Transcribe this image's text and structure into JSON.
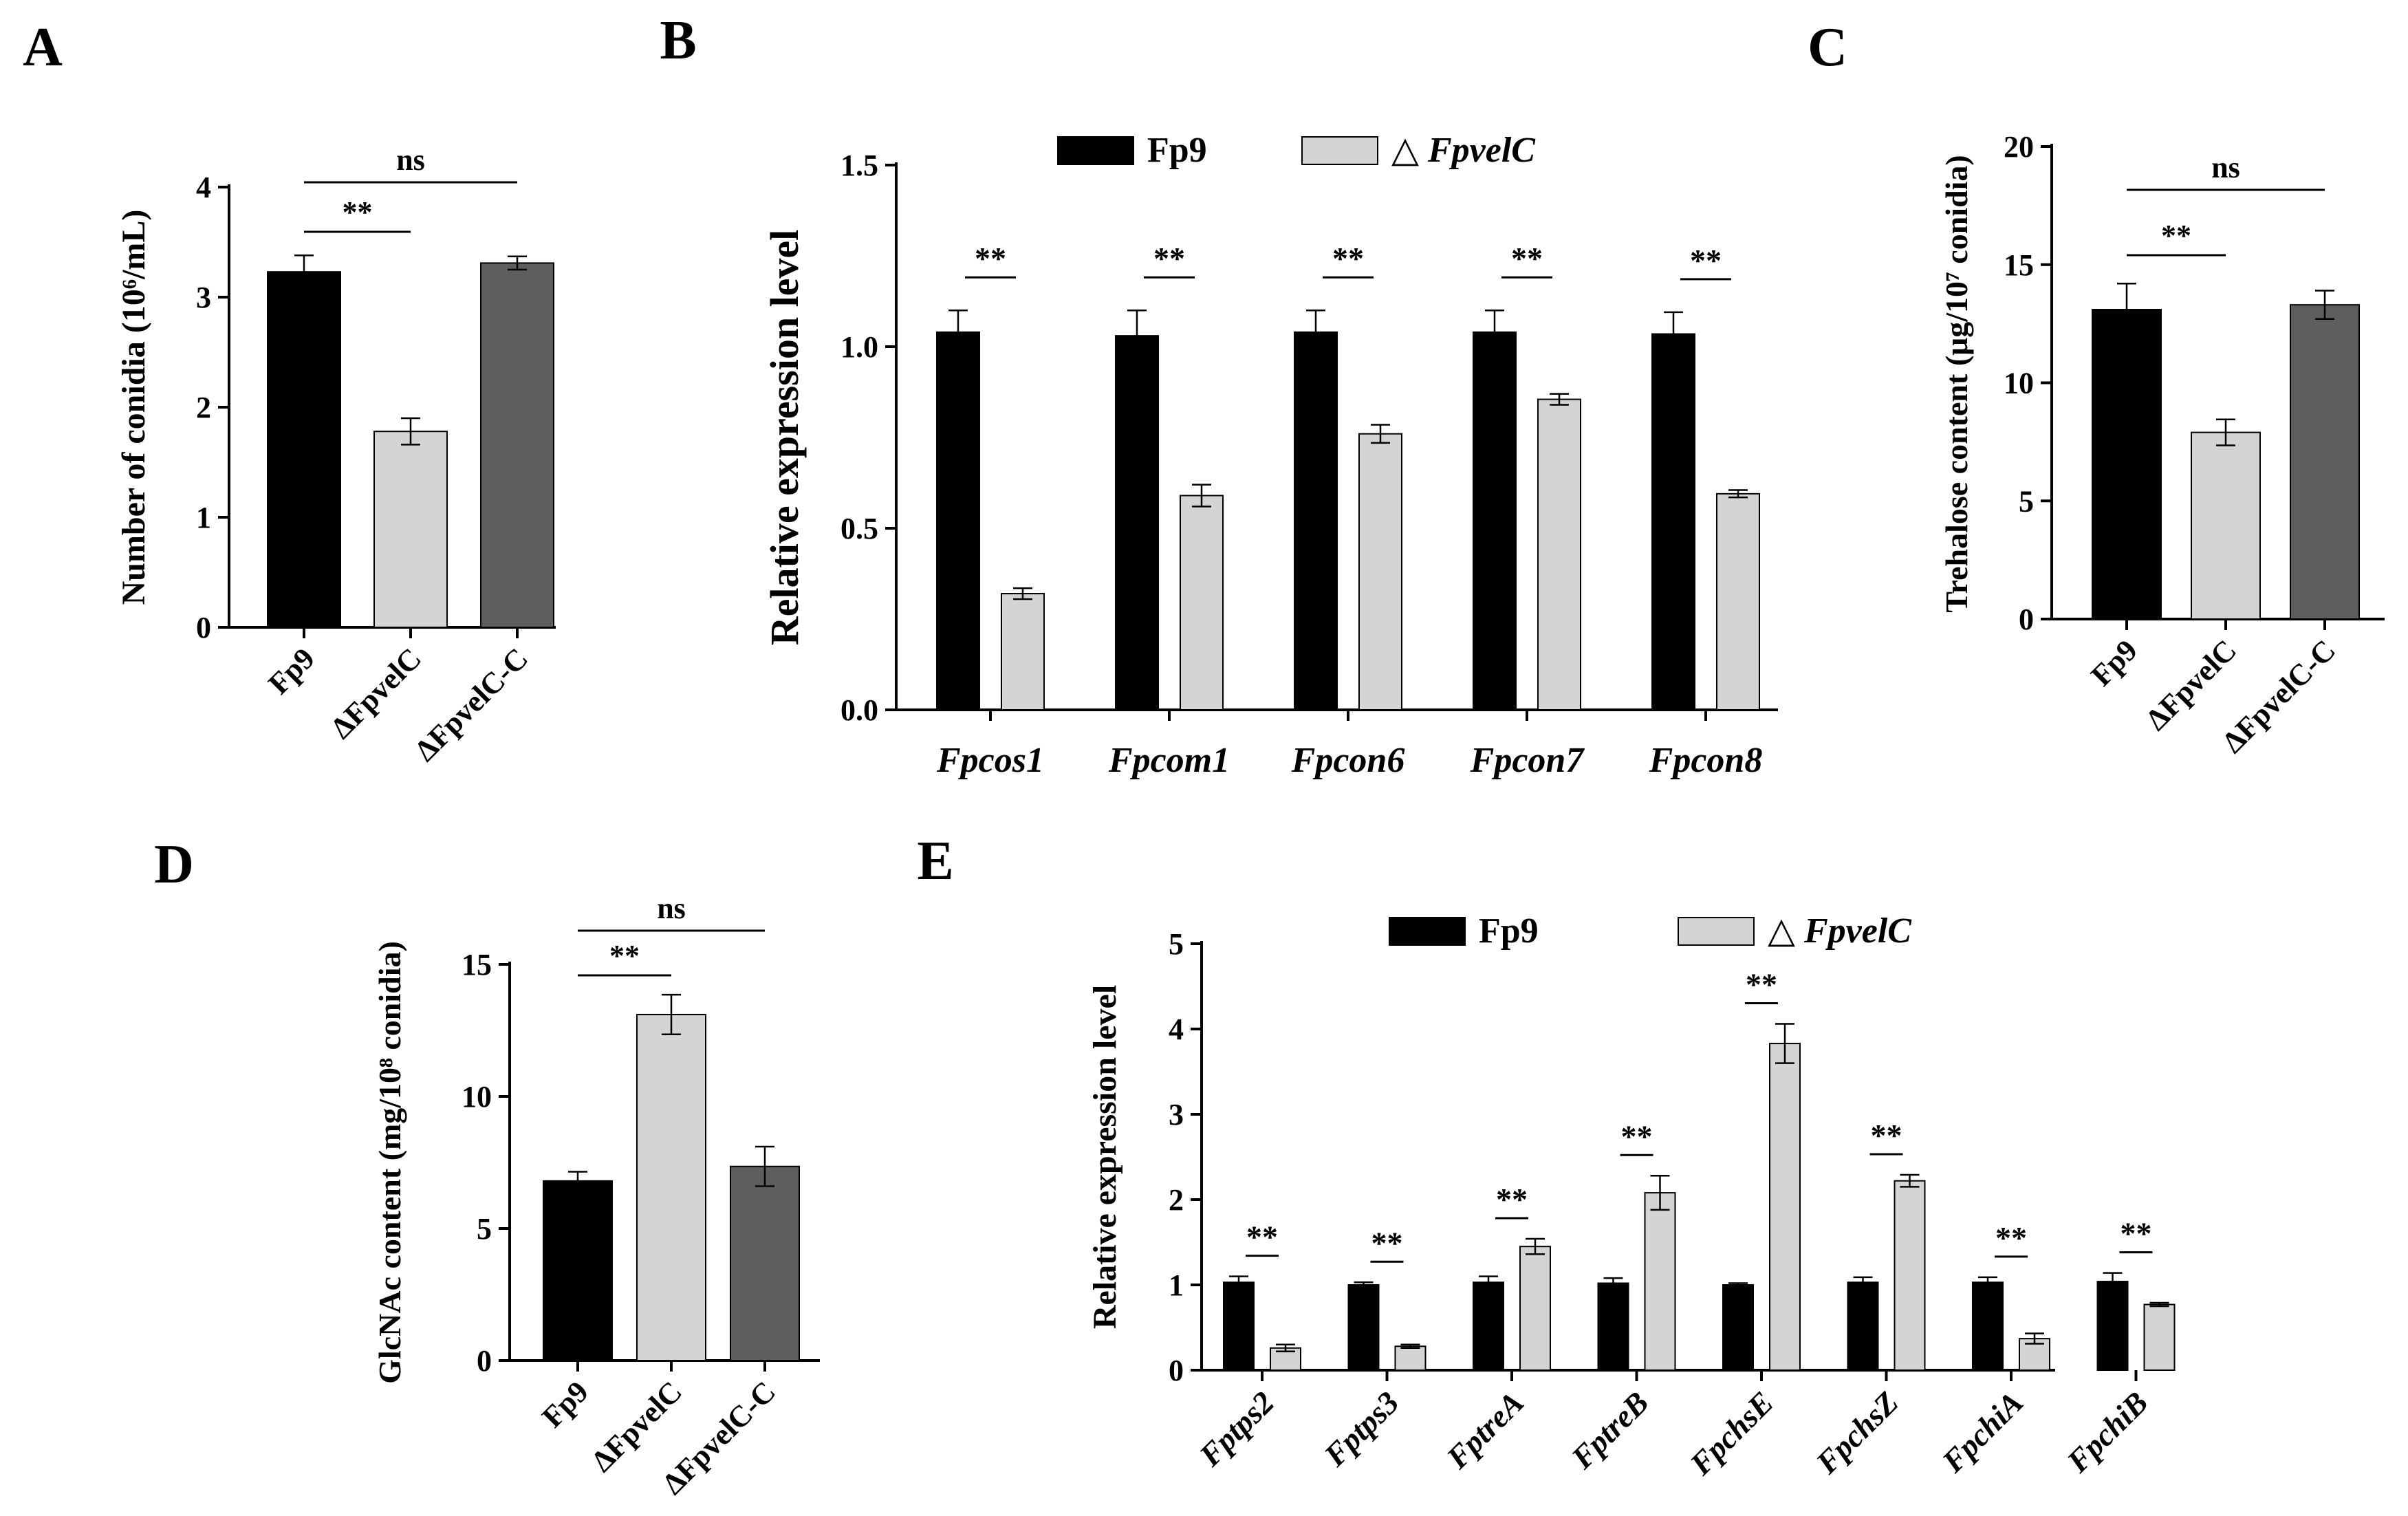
{
  "chart_data": [
    {
      "panel": "A",
      "type": "bar",
      "categories": [
        "Fp9",
        "ΔFpvelC",
        "ΔFpvelC-C"
      ],
      "values": [
        3.23,
        1.78,
        3.31
      ],
      "errors": [
        0.15,
        0.12,
        0.06
      ],
      "colors": [
        "#000000",
        "#d4d4d4",
        "#5e5e5e"
      ],
      "ylabel": "Number of conidia (10⁶/mL)",
      "ylim": [
        0,
        4
      ],
      "yticks": [
        "0",
        "1",
        "2",
        "3",
        "4"
      ],
      "grid": false,
      "significance": [
        {
          "from": "Fp9",
          "to": "ΔFpvelC",
          "label": "**"
        },
        {
          "from": "Fp9",
          "to": "ΔFpvelC-C",
          "label": "ns"
        }
      ]
    },
    {
      "panel": "B",
      "type": "bar",
      "categories": [
        "Fpcos1",
        "Fpcom1",
        "Fpcon6",
        "Fpcon7",
        "Fpcon8"
      ],
      "series": [
        {
          "name": "Fp9",
          "color": "#000000",
          "values": [
            1.04,
            1.03,
            1.04,
            1.04,
            1.035
          ],
          "errors": [
            0.06,
            0.07,
            0.06,
            0.06,
            0.06
          ]
        },
        {
          "name": "△ FpvelC",
          "color": "#d4d4d4",
          "values": [
            0.32,
            0.59,
            0.76,
            0.855,
            0.595
          ],
          "errors": [
            0.015,
            0.03,
            0.025,
            0.015,
            0.01
          ]
        }
      ],
      "ylabel": "Relative expression level",
      "ylim": [
        0,
        1.5
      ],
      "yticks": [
        "0.0",
        "0.5",
        "1.0",
        "1.5"
      ],
      "grid": false,
      "significance_label": "**",
      "legend": "top"
    },
    {
      "panel": "C",
      "type": "bar",
      "categories": [
        "Fp9",
        "ΔFpvelC",
        "ΔFpvelC-C"
      ],
      "values": [
        13.1,
        7.9,
        13.3
      ],
      "errors": [
        1.1,
        0.55,
        0.6
      ],
      "colors": [
        "#000000",
        "#d4d4d4",
        "#5e5e5e"
      ],
      "ylabel": "Trehalose content (μg/10⁷ conidia)",
      "ylim": [
        0,
        20
      ],
      "yticks": [
        "0",
        "5",
        "10",
        "15",
        "20"
      ],
      "grid": false,
      "significance": [
        {
          "from": "Fp9",
          "to": "ΔFpvelC",
          "label": "**"
        },
        {
          "from": "Fp9",
          "to": "ΔFpvelC-C",
          "label": "ns"
        }
      ]
    },
    {
      "panel": "D",
      "type": "bar",
      "categories": [
        "Fp9",
        "ΔFpvelC",
        "ΔFpvelC-C"
      ],
      "values": [
        6.8,
        13.1,
        7.35
      ],
      "errors": [
        0.35,
        0.75,
        0.75
      ],
      "colors": [
        "#000000",
        "#d4d4d4",
        "#5e5e5e"
      ],
      "ylabel": "GlcNAc content (mg/10⁸ conidia)",
      "ylim": [
        0,
        15
      ],
      "yticks": [
        "0",
        "5",
        "10",
        "15"
      ],
      "grid": false,
      "significance": [
        {
          "from": "Fp9",
          "to": "ΔFpvelC",
          "label": "**"
        },
        {
          "from": "Fp9",
          "to": "ΔFpvelC-C",
          "label": "ns"
        }
      ]
    },
    {
      "panel": "E",
      "type": "bar",
      "categories": [
        "Fptps2",
        "Fptps3",
        "FptreA",
        "FptreB",
        "FpchsE",
        "FpchsZ",
        "FpchiA",
        "FpchiB"
      ],
      "series": [
        {
          "name": "Fp9",
          "color": "#000000",
          "values": [
            1.03,
            1.0,
            1.03,
            1.02,
            1.0,
            1.03,
            1.03,
            1.04
          ],
          "errors": [
            0.07,
            0.03,
            0.07,
            0.06,
            0.02,
            0.06,
            0.06,
            0.1
          ]
        },
        {
          "name": "△ FpvelC",
          "color": "#d4d4d4",
          "values": [
            0.26,
            0.28,
            1.45,
            2.08,
            3.83,
            2.22,
            0.37,
            0.77
          ],
          "errors": [
            0.04,
            0.02,
            0.09,
            0.2,
            0.23,
            0.07,
            0.06,
            0.02
          ]
        }
      ],
      "ylabel": "Relative expression level",
      "ylim": [
        0,
        5
      ],
      "yticks": [
        "0",
        "1",
        "2",
        "3",
        "4",
        "5"
      ],
      "grid": false,
      "significance_label": "**",
      "legend": "top"
    }
  ],
  "panel_labels": [
    "A",
    "B",
    "C",
    "D",
    "E"
  ]
}
